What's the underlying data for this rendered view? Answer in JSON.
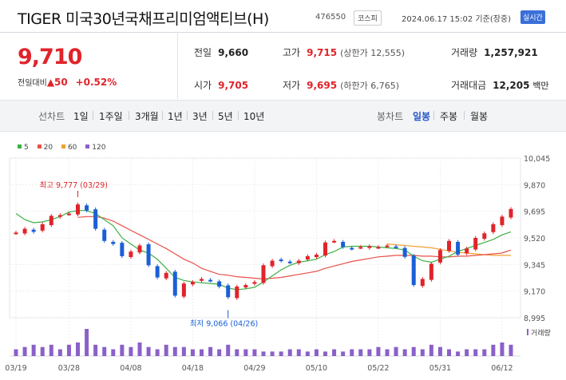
{
  "header": {
    "title": "TIGER 미국30년국채프리미엄액티브(H)",
    "code": "476550",
    "market": "코스피",
    "datetime": "2024.06.17 15:02 기준(장중)",
    "live_label": "실시간"
  },
  "quote": {
    "price": "9,710",
    "change_label": "전일대비",
    "change_value": "▲50",
    "change_pct": "+0.52%"
  },
  "stats": {
    "prev_close_label": "전일",
    "prev_close": "9,660",
    "open_label": "시가",
    "open": "9,705",
    "high_label": "고가",
    "high": "9,715",
    "upper_limit": "(상한가 12,555)",
    "low_label": "저가",
    "low": "9,695",
    "lower_limit": "(하한가 6,765)",
    "volume_label": "거래량",
    "volume": "1,257,921",
    "amount_label": "거래대금",
    "amount": "12,205",
    "amount_unit": "백만"
  },
  "line_tabs": {
    "label": "선차트",
    "items": [
      "1일",
      "1주일",
      "3개월",
      "1년",
      "3년",
      "5년",
      "10년"
    ]
  },
  "candle_tabs": {
    "label": "봉차트",
    "items": [
      "일봉",
      "주봉",
      "월봉"
    ],
    "selected": "일봉"
  },
  "legend": [
    {
      "label": "5",
      "color": "#3cb043"
    },
    {
      "label": "20",
      "color": "#e8504a"
    },
    {
      "label": "60",
      "color": "#f0a030"
    },
    {
      "label": "120",
      "color": "#8a60c8"
    }
  ],
  "chart_data": {
    "type": "candlestick",
    "x_tick_labels": [
      "03/19",
      "03/28",
      "04/08",
      "04/18",
      "04/29",
      "05/10",
      "05/22",
      "05/31",
      "06/12"
    ],
    "x_tick_index": [
      0,
      6,
      13,
      20,
      27,
      34,
      41,
      48,
      55
    ],
    "y_ticks": [
      10045,
      9870,
      9695,
      9520,
      9345,
      9170,
      8995
    ],
    "y_tick_labels": [
      "10,045",
      "9,870",
      "9,695",
      "9,520",
      "9,345",
      "9,170",
      "8,995"
    ],
    "ylim": [
      8995,
      10045
    ],
    "volume_label": "거래량",
    "annotations": {
      "high": {
        "text": "최고 9,777 (03/29)",
        "index": 7,
        "value": 9777
      },
      "low": {
        "text": "최저 9,066 (04/26)",
        "index": 24,
        "value": 9066
      }
    },
    "closes": [
      9555,
      9580,
      9560,
      9610,
      9665,
      9670,
      9680,
      9740,
      9700,
      9580,
      9500,
      9480,
      9400,
      9430,
      9470,
      9340,
      9260,
      9290,
      9140,
      9220,
      9230,
      9250,
      9240,
      9200,
      9130,
      9200,
      9210,
      9230,
      9340,
      9370,
      9370,
      9360,
      9370,
      9400,
      9410,
      9490,
      9500,
      9460,
      9450,
      9460,
      9465,
      9460,
      9470,
      9460,
      9395,
      9210,
      9250,
      9350,
      9440,
      9500,
      9410,
      9450,
      9520,
      9550,
      9610,
      9660,
      9710
    ],
    "volume": [
      3,
      4,
      5,
      4,
      5,
      3,
      5,
      6,
      12,
      5,
      4,
      3,
      5,
      4,
      6,
      4,
      3,
      5,
      4,
      4,
      3,
      3,
      4,
      3,
      5,
      3,
      3,
      3,
      2,
      2,
      2,
      3,
      3,
      2,
      3,
      2,
      3,
      2,
      3,
      3,
      3,
      4,
      3,
      4,
      3,
      4,
      3,
      5,
      4,
      3,
      2,
      3,
      3,
      3,
      5,
      6,
      5
    ],
    "ma5": [
      9680,
      9640,
      9620,
      9625,
      9640,
      9660,
      9690,
      9700,
      9700,
      9680,
      9640,
      9600,
      9520,
      9480,
      9440,
      9420,
      9380,
      9320,
      9260,
      9240,
      9230,
      9225,
      9220,
      9215,
      9190,
      9180,
      9185,
      9195,
      9230,
      9270,
      9310,
      9340,
      9360,
      9370,
      9380,
      9410,
      9430,
      9460,
      9465,
      9465,
      9465,
      9460,
      9455,
      9450,
      9440,
      9400,
      9370,
      9360,
      9380,
      9400,
      9430,
      9450,
      9470,
      9490,
      9510,
      9540,
      9560
    ],
    "ma20": [
      null,
      null,
      null,
      null,
      null,
      null,
      null,
      9655,
      9660,
      9660,
      9650,
      9630,
      9600,
      9570,
      9540,
      9510,
      9480,
      9450,
      9415,
      9380,
      9355,
      9320,
      9300,
      9280,
      9275,
      9265,
      9260,
      9255,
      9250,
      9255,
      9260,
      9270,
      9280,
      9290,
      9300,
      9320,
      9335,
      9350,
      9365,
      9375,
      9385,
      9395,
      9400,
      9405,
      9405,
      9405,
      9400,
      9400,
      9395,
      9395,
      9400,
      9400,
      9405,
      9410,
      9415,
      9420,
      9440
    ],
    "ma60": [
      null,
      null,
      null,
      null,
      null,
      null,
      null,
      null,
      null,
      null,
      null,
      null,
      null,
      null,
      null,
      null,
      null,
      null,
      null,
      null,
      null,
      null,
      null,
      null,
      null,
      null,
      null,
      null,
      null,
      null,
      null,
      null,
      null,
      null,
      null,
      null,
      null,
      null,
      null,
      null,
      null,
      null,
      9480,
      9475,
      9470,
      9465,
      9460,
      9455,
      9445,
      9435,
      9425,
      9420,
      9415,
      9410,
      9405,
      9405,
      9405
    ]
  }
}
